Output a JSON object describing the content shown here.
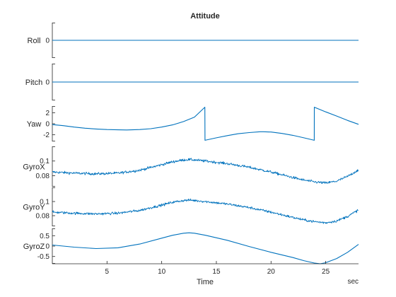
{
  "chart_data": {
    "type": "line",
    "title": "Attitude",
    "xlabel": "Time",
    "x_unit_label": "sec",
    "xlim": [
      0,
      28
    ],
    "xticks": [
      5,
      10,
      15,
      20,
      25
    ],
    "line_color": "#0072BD",
    "axes_color": "#262626",
    "subplots": [
      {
        "name": "roll",
        "ylabel": "Roll",
        "ylim": [
          -1,
          1
        ],
        "yticks": [
          {
            "value": 0,
            "label": "0"
          }
        ],
        "x": [
          0,
          28
        ],
        "y": [
          0,
          0
        ]
      },
      {
        "name": "pitch",
        "ylabel": "Pitch",
        "ylim": [
          -1,
          1
        ],
        "yticks": [
          {
            "value": 0,
            "label": "0"
          }
        ],
        "x": [
          0,
          28
        ],
        "y": [
          0,
          0
        ]
      },
      {
        "name": "yaw",
        "ylabel": "Yaw",
        "ylim": [
          -3.2,
          3.2
        ],
        "yticks": [
          {
            "value": 2,
            "label": "2"
          },
          {
            "value": 0,
            "label": "0"
          },
          {
            "value": -2,
            "label": "-2"
          }
        ],
        "x": [
          0,
          1,
          2,
          3,
          4,
          5,
          6,
          6.8,
          8,
          9,
          10,
          11,
          12,
          13,
          13.95,
          13.96,
          15,
          16,
          17,
          18,
          19,
          19.3,
          20,
          21,
          22,
          23,
          23.95,
          23.96,
          25,
          26,
          27,
          28
        ],
        "y": [
          -0.15,
          -0.35,
          -0.6,
          -0.8,
          -0.95,
          -1.05,
          -1.1,
          -1.12,
          -1.05,
          -0.9,
          -0.6,
          -0.2,
          0.4,
          1.2,
          3.0,
          -3.0,
          -2.55,
          -2.15,
          -1.8,
          -1.6,
          -1.45,
          -1.44,
          -1.5,
          -1.75,
          -2.1,
          -2.55,
          -3.0,
          3.0,
          2.15,
          1.4,
          0.6,
          -0.1
        ]
      },
      {
        "name": "gyrox",
        "ylabel": "GyroX",
        "ylim": [
          0.065,
          0.12
        ],
        "yticks": [
          {
            "value": 0.1,
            "label": "0.1"
          },
          {
            "value": 0.08,
            "label": "0.08"
          }
        ],
        "noise": 0.003,
        "x": [
          0,
          2,
          4,
          6,
          8,
          10,
          11,
          12,
          12.5,
          13,
          14,
          16,
          18,
          20,
          22,
          23,
          24,
          25,
          26,
          27,
          28
        ],
        "y": [
          0.085,
          0.0835,
          0.0825,
          0.0835,
          0.0875,
          0.095,
          0.099,
          0.1015,
          0.102,
          0.1015,
          0.1,
          0.0965,
          0.0915,
          0.085,
          0.0775,
          0.074,
          0.0715,
          0.07,
          0.0725,
          0.079,
          0.088
        ]
      },
      {
        "name": "gyroy",
        "ylabel": "GyroY",
        "ylim": [
          0.065,
          0.12
        ],
        "yticks": [
          {
            "value": 0.1,
            "label": "0.1"
          },
          {
            "value": 0.08,
            "label": "0.08"
          }
        ],
        "noise": 0.003,
        "x": [
          0,
          2,
          4,
          6,
          8,
          10,
          11,
          12,
          12.5,
          13,
          14,
          16,
          18,
          20,
          22,
          23,
          24,
          25,
          26,
          27,
          28
        ],
        "y": [
          0.085,
          0.0835,
          0.0825,
          0.0835,
          0.0875,
          0.095,
          0.099,
          0.1015,
          0.102,
          0.1015,
          0.1,
          0.0965,
          0.0915,
          0.085,
          0.0775,
          0.074,
          0.0715,
          0.07,
          0.0725,
          0.079,
          0.088
        ]
      },
      {
        "name": "gyroz",
        "ylabel": "GyroZ",
        "ylim": [
          -0.85,
          0.85
        ],
        "yticks": [
          {
            "value": 0.5,
            "label": "0.5"
          },
          {
            "value": 0,
            "label": "0"
          },
          {
            "value": -0.5,
            "label": "-0.5"
          }
        ],
        "x": [
          0,
          2,
          4,
          6,
          8,
          10,
          11,
          12,
          12.5,
          13,
          14,
          16,
          18,
          20,
          22,
          23,
          24,
          24.5,
          25,
          26,
          27,
          28
        ],
        "y": [
          0.05,
          -0.05,
          -0.12,
          -0.08,
          0.1,
          0.38,
          0.52,
          0.62,
          0.64,
          0.62,
          0.52,
          0.28,
          -0.02,
          -0.3,
          -0.55,
          -0.7,
          -0.82,
          -0.85,
          -0.8,
          -0.6,
          -0.3,
          0.08
        ]
      }
    ]
  }
}
